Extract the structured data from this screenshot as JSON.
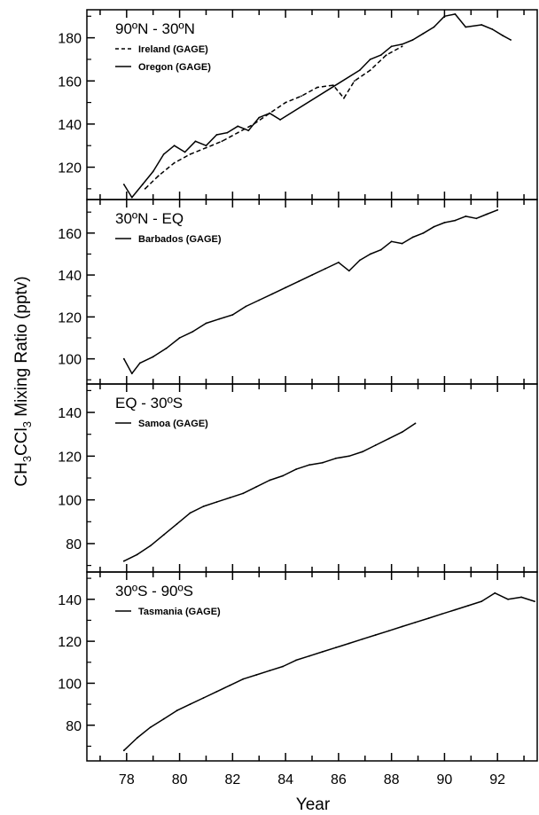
{
  "chart_data": {
    "type": "line",
    "ylabel_parts": [
      "CH",
      "3",
      "CCl",
      "3",
      " Mixing Ratio (pptv)"
    ],
    "xlabel": "Year",
    "x_ticks": [
      78,
      80,
      82,
      84,
      86,
      88,
      90,
      92
    ],
    "xlim": [
      76.5,
      93.5
    ],
    "panels": [
      {
        "title": "90ºN - 30ºN",
        "ylim": [
          105,
          193
        ],
        "y_ticks": [
          120,
          140,
          160,
          180
        ],
        "series": [
          {
            "name": "Ireland (GAGE)",
            "style": "dashed",
            "x": [
              78.7,
              79.2,
              79.8,
              80.4,
              81.0,
              81.6,
              82.2,
              82.8,
              83.4,
              84.0,
              84.6,
              85.2,
              85.8,
              86.2,
              86.6,
              87.2,
              87.8,
              88.4
            ],
            "y": [
              110,
              116,
              122,
              126,
              129,
              132,
              136,
              140,
              145,
              150,
              153,
              157,
              158,
              152,
              160,
              165,
              172,
              176
            ]
          },
          {
            "name": "Oregon (GAGE)",
            "style": "solid",
            "x": [
              77.9,
              78.2,
              78.6,
              79.0,
              79.4,
              79.8,
              80.2,
              80.6,
              81.0,
              81.4,
              81.8,
              82.2,
              82.6,
              83.0,
              83.4,
              83.8,
              86.8,
              87.2,
              87.6,
              88.0,
              88.4,
              88.8,
              89.2,
              89.6,
              90.0,
              90.4,
              90.8,
              91.4,
              91.8,
              92.2,
              92.5
            ],
            "y": [
              112,
              106,
              112,
              118,
              126,
              130,
              127,
              132,
              130,
              135,
              136,
              139,
              137,
              143,
              145,
              142,
              165,
              170,
              172,
              176,
              177,
              179,
              182,
              185,
              190,
              191,
              185,
              186,
              184,
              181,
              179
            ]
          }
        ]
      },
      {
        "title": "30ºN - EQ",
        "ylim": [
          88,
          176
        ],
        "y_ticks": [
          100,
          120,
          140,
          160
        ],
        "series": [
          {
            "name": "Barbados (GAGE)",
            "style": "solid",
            "x": [
              77.9,
              78.2,
              78.5,
              79.0,
              79.5,
              80.0,
              80.5,
              81.0,
              81.5,
              82.0,
              82.5,
              83.0,
              83.5,
              84.0,
              84.5,
              85.0,
              85.5,
              86.0,
              86.4,
              86.8,
              87.2,
              87.6,
              88.0,
              88.4,
              88.8,
              89.2,
              89.6,
              90.0,
              90.4,
              90.8,
              91.2,
              91.6,
              92.0
            ],
            "y": [
              100,
              93,
              98,
              101,
              105,
              110,
              113,
              117,
              119,
              121,
              125,
              128,
              131,
              134,
              137,
              140,
              143,
              146,
              142,
              147,
              150,
              152,
              156,
              155,
              158,
              160,
              163,
              165,
              166,
              168,
              167,
              169,
              171
            ]
          }
        ]
      },
      {
        "title": "EQ - 30ºS",
        "ylim": [
          67,
          153
        ],
        "y_ticks": [
          80,
          100,
          120,
          140
        ],
        "series": [
          {
            "name": "Samoa (GAGE)",
            "style": "solid",
            "x": [
              77.9,
              78.4,
              78.9,
              79.4,
              79.9,
              80.4,
              80.9,
              81.4,
              81.9,
              82.4,
              82.9,
              83.4,
              83.9,
              84.4,
              84.9,
              85.4,
              85.9,
              86.4,
              86.9,
              87.4,
              87.9,
              88.4,
              88.9
            ],
            "y": [
              72,
              75,
              79,
              84,
              89,
              94,
              97,
              99,
              101,
              103,
              106,
              109,
              111,
              114,
              116,
              117,
              119,
              120,
              122,
              125,
              128,
              131,
              135
            ]
          }
        ]
      },
      {
        "title": "30ºS - 90ºS",
        "ylim": [
          63,
          153
        ],
        "y_ticks": [
          80,
          100,
          120,
          140
        ],
        "series": [
          {
            "name": "Tasmania (GAGE)",
            "style": "solid",
            "x": [
              77.9,
              78.4,
              78.9,
              79.4,
              79.9,
              80.4,
              80.9,
              81.4,
              81.9,
              82.4,
              82.9,
              83.4,
              83.9,
              84.4,
              84.9,
              85.4,
              85.9,
              86.4,
              86.9,
              87.4,
              87.9,
              88.4,
              88.9,
              89.4,
              89.9,
              90.4,
              90.9,
              91.4,
              91.9,
              92.4,
              92.9,
              93.4
            ],
            "y": [
              68,
              74,
              79,
              83,
              87,
              90,
              93,
              96,
              99,
              102,
              104,
              106,
              108,
              111,
              113,
              115,
              117,
              119,
              121,
              123,
              125,
              127,
              129,
              131,
              133,
              135,
              137,
              139,
              143,
              140,
              141,
              139
            ]
          }
        ]
      }
    ]
  }
}
